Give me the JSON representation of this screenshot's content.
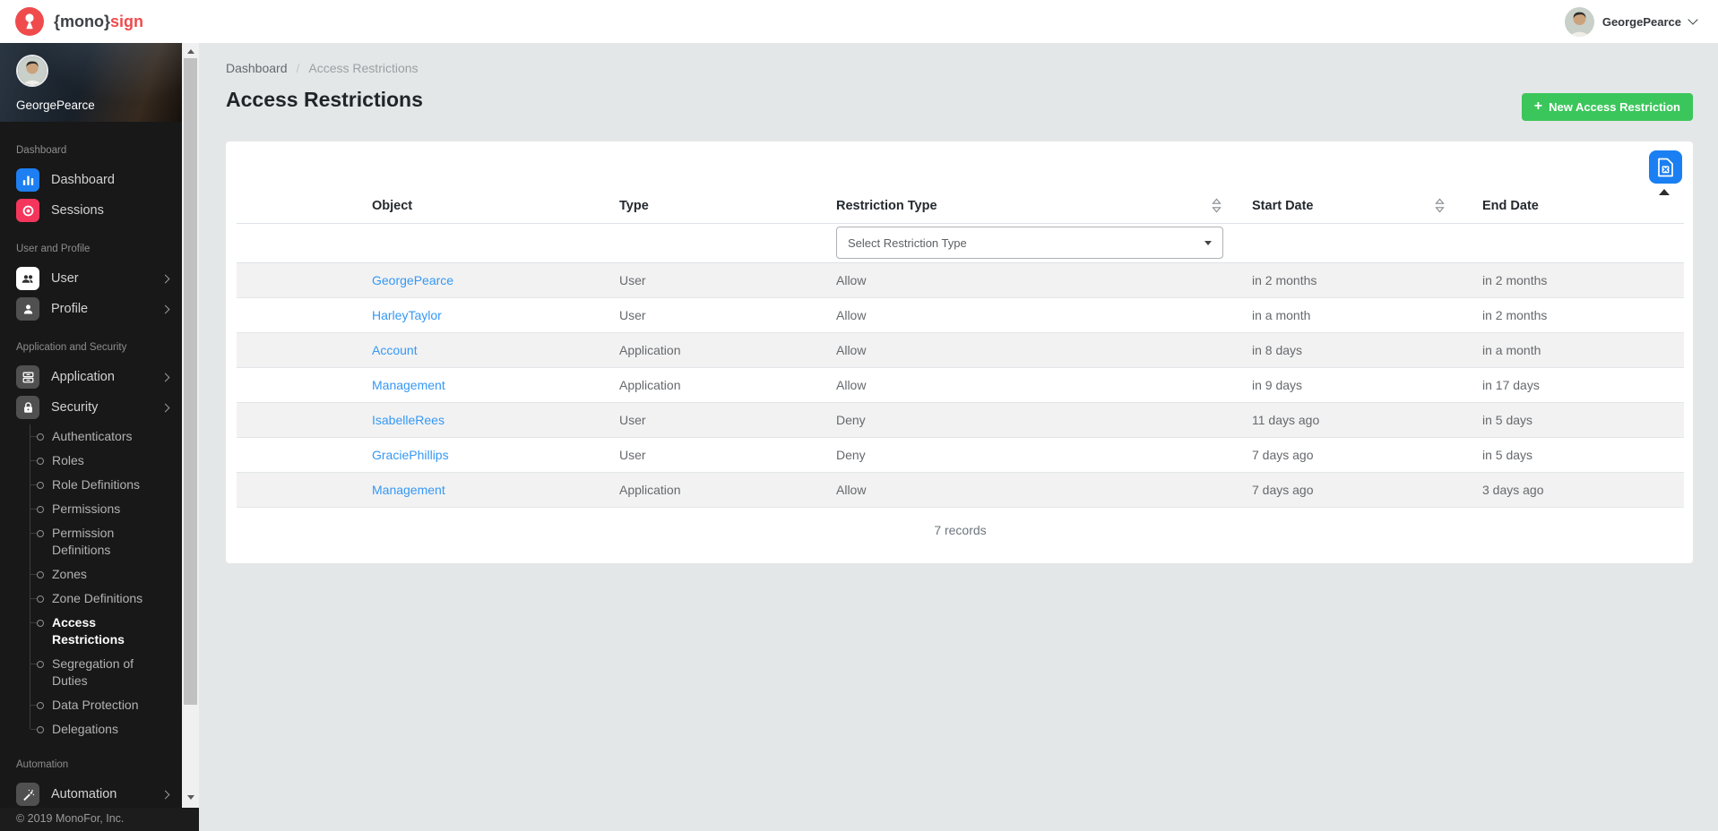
{
  "topbar": {
    "brand_prefix": "{mono}",
    "brand_suffix": "sign",
    "user_name": "GeorgePearce"
  },
  "colors": {
    "accent_blue": "#1a7ff2",
    "accent_green": "#3bc65b",
    "accent_red": "#f5365c",
    "link_blue": "#3598f5",
    "sidebar_bg": "#181818",
    "main_bg": "#e4e7e8",
    "row_stripe": "#f2f2f2"
  },
  "sidebar": {
    "profile_name": "GeorgePearce",
    "sections": [
      {
        "label": "Dashboard",
        "items": [
          {
            "label": "Dashboard",
            "icon": "dashboard-chart-icon",
            "icon_bg": "#1d7ff2",
            "icon_fg": "#ffffff",
            "has_children": false
          },
          {
            "label": "Sessions",
            "icon": "record-icon",
            "icon_bg": "#f5365c",
            "icon_fg": "#ffffff",
            "has_children": false
          }
        ]
      },
      {
        "label": "User and Profile",
        "items": [
          {
            "label": "User",
            "icon": "users-icon",
            "icon_bg": "#ffffff",
            "icon_fg": "#2f2f2f",
            "has_children": true
          },
          {
            "label": "Profile",
            "icon": "person-icon",
            "icon_bg": "#505050",
            "icon_fg": "#ffffff",
            "has_children": true
          }
        ]
      },
      {
        "label": "Application and Security",
        "items": [
          {
            "label": "Application",
            "icon": "archive-icon",
            "icon_bg": "#505050",
            "icon_fg": "#ffffff",
            "has_children": true
          },
          {
            "label": "Security",
            "icon": "lock-icon",
            "icon_bg": "#505050",
            "icon_fg": "#ffffff",
            "has_children": true,
            "expanded": true,
            "children": [
              "Authenticators",
              "Roles",
              "Role Definitions",
              "Permissions",
              "Permission Definitions",
              "Zones",
              "Zone Definitions",
              "Access Restrictions",
              "Segregation of Duties",
              "Data Protection",
              "Delegations"
            ],
            "active_child": "Access Restrictions"
          }
        ]
      },
      {
        "label": "Automation",
        "items": [
          {
            "label": "Automation",
            "icon": "wand-icon",
            "icon_bg": "#505050",
            "icon_fg": "#ffffff",
            "has_children": true
          }
        ]
      }
    ],
    "footer": "© 2019 MonoFor, Inc."
  },
  "main": {
    "breadcrumb": {
      "parent": "Dashboard",
      "separator": "/",
      "current": "Access Restrictions"
    },
    "title": "Access Restrictions",
    "new_button": {
      "plus_glyph": "+",
      "label": "New Access Restriction"
    },
    "table": {
      "columns": [
        "",
        "Object",
        "Type",
        "Restriction Type",
        "Start Date",
        "End Date"
      ],
      "filter_placeholder": "Select Restriction Type",
      "rows": [
        {
          "object": "GeorgePearce",
          "type": "User",
          "restriction": "Allow",
          "start": "in 2 months",
          "end": "in 2 months"
        },
        {
          "object": "HarleyTaylor",
          "type": "User",
          "restriction": "Allow",
          "start": "in a month",
          "end": "in 2 months"
        },
        {
          "object": "Account",
          "type": "Application",
          "restriction": "Allow",
          "start": "in 8 days",
          "end": "in a month"
        },
        {
          "object": "Management",
          "type": "Application",
          "restriction": "Allow",
          "start": "in 9 days",
          "end": "in 17 days"
        },
        {
          "object": "IsabelleRees",
          "type": "User",
          "restriction": "Deny",
          "start": "11 days ago",
          "end": "in 5 days"
        },
        {
          "object": "GraciePhillips",
          "type": "User",
          "restriction": "Deny",
          "start": "7 days ago",
          "end": "in 5 days"
        },
        {
          "object": "Management",
          "type": "Application",
          "restriction": "Allow",
          "start": "7 days ago",
          "end": "3 days ago"
        }
      ],
      "records_label": "7 records"
    }
  }
}
